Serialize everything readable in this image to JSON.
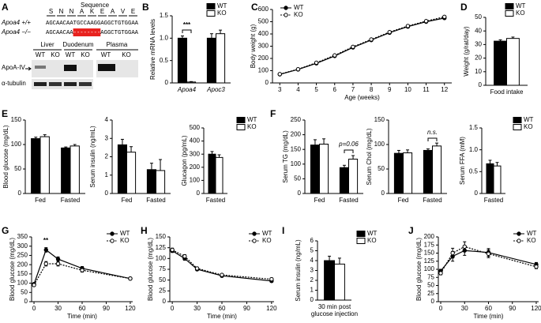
{
  "panel_a": {
    "label": "A",
    "sequence_title": "Sequence",
    "amino_acids": [
      "S",
      "N",
      "N",
      "A",
      "K",
      "E",
      "A",
      "V",
      "E"
    ],
    "rows": [
      {
        "genotype": "Apoa4 +/+",
        "seq": "AGCAACAATGCCAAGGAGGCTGTGGAA"
      },
      {
        "genotype": "Apoa4 −/−",
        "seq_left": "AGCAACAA",
        "deletion": "--------",
        "seq_right": "AGGCTGTGGAA"
      }
    ],
    "tissues": [
      "Liver",
      "Duodenum",
      "Plasma"
    ],
    "lanes": [
      "WT",
      "KO",
      "WT",
      "KO",
      "WT",
      "KO"
    ],
    "proteins": [
      "ApoA-IV",
      "α-tubulin"
    ]
  },
  "chart_data": [
    {
      "type": "bar",
      "panel": "B",
      "ylabel": "Relative mRNA levels",
      "categories": [
        "Apoa4",
        "Apoc3"
      ],
      "ylim": [
        0,
        1.5
      ],
      "yticks": [
        0,
        0.5,
        {
          "value": 1,
          "label": "1.0"
        },
        1.5
      ],
      "legend": "upper right",
      "annotation": "***",
      "series": [
        {
          "name": "WT",
          "color": "#000000",
          "values": [
            1.0,
            1.0
          ],
          "errors": [
            0.05,
            0.1
          ]
        },
        {
          "name": "KO",
          "color": "#ffffff",
          "values": [
            0.02,
            1.1
          ],
          "errors": [
            0.01,
            0.08
          ]
        }
      ]
    },
    {
      "type": "line",
      "panel": "C",
      "xlabel": "Age (weeks)",
      "ylabel": "Body weight (g)",
      "x": [
        3,
        4,
        5,
        6,
        7,
        8,
        9,
        10,
        11,
        12
      ],
      "xlim": [
        2.6,
        12.4
      ],
      "xticks": [
        3,
        4,
        5,
        6,
        7,
        8,
        9,
        10,
        11,
        12
      ],
      "ylim": [
        0,
        600
      ],
      "yticks": [
        0,
        100,
        200,
        300,
        400,
        500,
        600
      ],
      "legend": "upper left",
      "series": [
        {
          "name": "WT",
          "color": "#000000",
          "marker": "filled",
          "dash": false,
          "values": [
            70,
            110,
            160,
            220,
            290,
            350,
            410,
            460,
            500,
            530
          ]
        },
        {
          "name": "KO",
          "color": "#000000",
          "marker": "open",
          "dash": true,
          "values": [
            72,
            112,
            165,
            225,
            295,
            355,
            415,
            465,
            505,
            540
          ]
        }
      ]
    },
    {
      "type": "bar",
      "panel": "D",
      "ylabel": "Weight (g/rat/day)",
      "categories": [
        "Food intake"
      ],
      "ylim": [
        0,
        50
      ],
      "yticks": [
        0,
        10,
        20,
        30,
        40,
        50
      ],
      "legend": "upper right",
      "series": [
        {
          "name": "WT",
          "color": "#000000",
          "values": [
            32.5
          ],
          "errors": [
            1
          ]
        },
        {
          "name": "KO",
          "color": "#ffffff",
          "values": [
            34.5
          ],
          "errors": [
            1
          ]
        }
      ]
    },
    {
      "type": "bar",
      "panel": "E",
      "ylabel": "Blood glucose (mg/dL)",
      "categories": [
        "Fed",
        "Fasted"
      ],
      "ylim": [
        0,
        150
      ],
      "yticks": [
        0,
        50,
        100,
        150
      ],
      "series": [
        {
          "name": "WT",
          "color": "#000000",
          "values": [
            112,
            93
          ],
          "errors": [
            3,
            2
          ]
        },
        {
          "name": "KO",
          "color": "#ffffff",
          "values": [
            116,
            97
          ],
          "errors": [
            4,
            3
          ]
        }
      ]
    },
    {
      "type": "bar",
      "ylabel": "Serum insulin (ng/mL)",
      "categories": [
        "Fed",
        "Fasted"
      ],
      "ylim": [
        0,
        4
      ],
      "yticks": [
        0,
        1,
        2,
        3,
        4
      ],
      "series": [
        {
          "name": "WT",
          "color": "#000000",
          "values": [
            2.65,
            1.3
          ],
          "errors": [
            0.3,
            0.35
          ]
        },
        {
          "name": "KO",
          "color": "#ffffff",
          "values": [
            2.25,
            1.25
          ],
          "errors": [
            0.3,
            0.6
          ]
        }
      ]
    },
    {
      "type": "bar",
      "ylabel": "Glucagon (pg/mL)",
      "categories": [
        "Fasted"
      ],
      "ylim": [
        0,
        500
      ],
      "yticks": [
        0,
        100,
        200,
        300,
        400,
        500
      ],
      "legend": "upper right",
      "series": [
        {
          "name": "WT",
          "color": "#000000",
          "values": [
            300
          ],
          "errors": [
            20
          ]
        },
        {
          "name": "KO",
          "color": "#ffffff",
          "values": [
            275
          ],
          "errors": [
            20
          ]
        }
      ]
    },
    {
      "type": "bar",
      "panel": "F",
      "ylabel": "Serum TG (mg/dL)",
      "categories": [
        "Fed",
        "Fasted"
      ],
      "ylim": [
        0,
        250
      ],
      "yticks": [
        0,
        50,
        100,
        150,
        200,
        250
      ],
      "annotation": "p=0.06",
      "series": [
        {
          "name": "WT",
          "color": "#000000",
          "values": [
            165,
            88
          ],
          "errors": [
            18,
            8
          ]
        },
        {
          "name": "KO",
          "color": "#ffffff",
          "values": [
            168,
            117
          ],
          "errors": [
            18,
            12
          ]
        }
      ]
    },
    {
      "type": "bar",
      "ylabel": "Serum Chol (mg/dL)",
      "categories": [
        "Fed",
        "Fasted"
      ],
      "ylim": [
        0,
        150
      ],
      "yticks": [
        0,
        50,
        100,
        150
      ],
      "annotation": "n.s.",
      "series": [
        {
          "name": "WT",
          "color": "#000000",
          "values": [
            82,
            88
          ],
          "errors": [
            6,
            3
          ]
        },
        {
          "name": "KO",
          "color": "#ffffff",
          "values": [
            83,
            97
          ],
          "errors": [
            6,
            6
          ]
        }
      ]
    },
    {
      "type": "bar",
      "ylabel": "Serum FFA (mM)",
      "categories": [
        "Fasted"
      ],
      "ylim": [
        0,
        1.5
      ],
      "yticks": [
        0,
        0.5,
        {
          "value": 1,
          "label": "1.0"
        },
        1.5
      ],
      "legend": "upper right",
      "series": [
        {
          "name": "WT",
          "color": "#000000",
          "values": [
            0.68
          ],
          "errors": [
            0.08
          ]
        },
        {
          "name": "KO",
          "color": "#ffffff",
          "values": [
            0.63
          ],
          "errors": [
            0.08
          ]
        }
      ]
    },
    {
      "type": "line",
      "panel": "G",
      "xlabel": "Time (min)",
      "ylabel": "Blood glucose (mg/dL)",
      "x": [
        0,
        15,
        30,
        60,
        120
      ],
      "xlim": [
        -3,
        123
      ],
      "xticks": [
        0,
        30,
        60,
        90,
        120
      ],
      "ylim": [
        0,
        350
      ],
      "yticks": [
        0,
        50,
        100,
        150,
        200,
        250,
        300,
        350
      ],
      "legend": "upper right",
      "annotation": "**",
      "series": [
        {
          "name": "WT",
          "color": "#000000",
          "marker": "filled",
          "dash": false,
          "values": [
            95,
            280,
            230,
            180,
            125
          ],
          "errors": [
            5,
            12,
            12,
            10,
            6
          ]
        },
        {
          "name": "KO",
          "color": "#000000",
          "marker": "open",
          "dash": true,
          "values": [
            90,
            205,
            205,
            170,
            125
          ],
          "errors": [
            5,
            12,
            12,
            10,
            6
          ]
        }
      ]
    },
    {
      "type": "line",
      "panel": "H",
      "xlabel": "Time (min)",
      "ylabel": "Blood glucose (mg/dL)",
      "x": [
        0,
        15,
        30,
        60,
        120
      ],
      "xlim": [
        -3,
        123
      ],
      "xticks": [
        0,
        30,
        60,
        90,
        120
      ],
      "ylim": [
        0,
        150
      ],
      "yticks": [
        0,
        25,
        50,
        75,
        100,
        125,
        150
      ],
      "legend": "upper right",
      "series": [
        {
          "name": "WT",
          "color": "#000000",
          "marker": "filled",
          "dash": false,
          "values": [
            118,
            100,
            75,
            60,
            48
          ],
          "errors": [
            4,
            4,
            3,
            3,
            3
          ]
        },
        {
          "name": "KO",
          "color": "#000000",
          "marker": "open",
          "dash": true,
          "values": [
            120,
            105,
            77,
            62,
            52
          ],
          "errors": [
            4,
            4,
            3,
            3,
            3
          ]
        }
      ]
    },
    {
      "type": "bar",
      "panel": "I",
      "ylabel": "Serum insulin (ng/mL)",
      "categories": [
        [
          "30 min post",
          "glucose injection"
        ]
      ],
      "ylim": [
        0,
        6
      ],
      "yticks": [
        0,
        1,
        2,
        3,
        4,
        5,
        6
      ],
      "legend": "upper right",
      "series": [
        {
          "name": "WT",
          "color": "#000000",
          "values": [
            4.0
          ],
          "errors": [
            0.45
          ]
        },
        {
          "name": "KO",
          "color": "#ffffff",
          "values": [
            3.65
          ],
          "errors": [
            0.6
          ]
        }
      ]
    },
    {
      "type": "line",
      "panel": "J",
      "xlabel": "Time (min)",
      "ylabel": "Blood glucose (mg/dL)",
      "x": [
        0,
        15,
        30,
        60,
        120
      ],
      "xlim": [
        -3,
        123
      ],
      "xticks": [
        0,
        30,
        60,
        90,
        120
      ],
      "ylim": [
        0,
        200
      ],
      "yticks": [
        0,
        25,
        50,
        75,
        100,
        125,
        150,
        175,
        200
      ],
      "legend": "upper right",
      "series": [
        {
          "name": "WT",
          "color": "#000000",
          "marker": "filled",
          "dash": false,
          "values": [
            95,
            140,
            158,
            152,
            115
          ],
          "errors": [
            5,
            15,
            15,
            12,
            6
          ]
        },
        {
          "name": "KO",
          "color": "#000000",
          "marker": "open",
          "dash": true,
          "values": [
            88,
            150,
            170,
            148,
            108
          ],
          "errors": [
            5,
            15,
            15,
            12,
            6
          ]
        }
      ]
    }
  ]
}
